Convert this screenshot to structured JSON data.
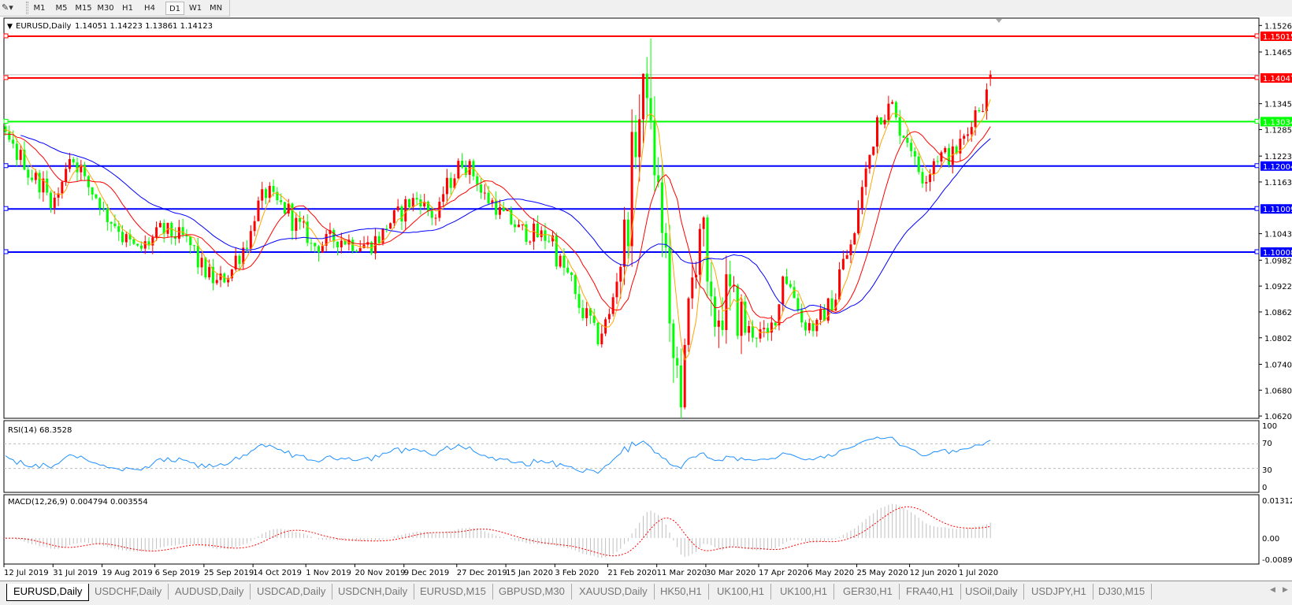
{
  "toolbar": {
    "periods": [
      "M1",
      "M5",
      "M15",
      "M30",
      "H1",
      "H4",
      "D1",
      "W1",
      "MN"
    ],
    "active": "D1"
  },
  "chart": {
    "symbol_header": "EURUSD,Daily",
    "ohlc": "1.14051 1.14223 1.13861 1.14123"
  },
  "tabs": [
    "EURUSD,Daily",
    "USDCHF,Daily",
    "AUDUSD,Daily",
    "USDCAD,Daily",
    "USDCNH,Daily",
    "EURUSD,M15",
    "GBPUSD,M30",
    "XAUUSD,Daily",
    "HK50,H1",
    "UK100,H1",
    "UK100,H1",
    "GER30,H1",
    "FRA40,H1",
    "USOil,Daily",
    "USDJPY,H1",
    "DJ30,M15"
  ],
  "active_tab": "EURUSD,Daily",
  "chart_data": {
    "type": "candlestick",
    "symbol": "EURUSD",
    "timeframe": "Daily",
    "last_bar": {
      "open": 1.14051,
      "high": 1.14223,
      "low": 1.13861,
      "close": 1.14123
    },
    "colors": {
      "bull": "#ff0000",
      "bear": "#00ff00",
      "ma_fast": "#ffa500",
      "ma_mid": "#ff0000",
      "ma_slow": "#0000ff",
      "rsi": "#1e90ff",
      "macd_hist": "#c0c0c0",
      "macd_signal": "#ff0000"
    },
    "close_path": [
      [
        "2019-06-20",
        1.127
      ],
      [
        "2019-07-12",
        1.1273
      ],
      [
        "2019-07-23",
        1.1177
      ],
      [
        "2019-07-31",
        1.112
      ],
      [
        "2019-08-06",
        1.1225
      ],
      [
        "2019-08-18",
        1.11
      ],
      [
        "2019-08-31",
        1.0995
      ],
      [
        "2019-09-08",
        1.1052
      ],
      [
        "2019-09-17",
        1.1033
      ],
      [
        "2019-09-29",
        1.0918
      ],
      [
        "2019-10-08",
        1.0995
      ],
      [
        "2019-10-17",
        1.1139
      ],
      [
        "2019-10-26",
        1.1091
      ],
      [
        "2019-11-04",
        1.1014
      ],
      [
        "2019-11-13",
        1.1033
      ],
      [
        "2019-11-25",
        1.1014
      ],
      [
        "2019-12-07",
        1.11
      ],
      [
        "2019-12-13",
        1.1129
      ],
      [
        "2019-12-19",
        1.1081
      ],
      [
        "2019-12-29",
        1.1225
      ],
      [
        "2020-01-07",
        1.1129
      ],
      [
        "2020-01-19",
        1.1052
      ],
      [
        "2020-01-31",
        1.1033
      ],
      [
        "2020-02-12",
        1.0861
      ],
      [
        "2020-02-18",
        1.0803
      ],
      [
        "2020-02-24",
        1.0899
      ],
      [
        "2020-03-01",
        1.1168
      ],
      [
        "2020-03-06",
        1.1407
      ],
      [
        "2020-03-10",
        1.1206
      ],
      [
        "2020-03-16",
        1.0784
      ],
      [
        "2020-03-19",
        1.0688
      ],
      [
        "2020-03-23",
        1.0861
      ],
      [
        "2020-03-26",
        1.1072
      ],
      [
        "2020-03-31",
        1.0841
      ],
      [
        "2020-04-06",
        1.0899
      ],
      [
        "2020-04-12",
        1.0822
      ],
      [
        "2020-04-21",
        1.0803
      ],
      [
        "2020-04-27",
        1.0957
      ],
      [
        "2020-05-03",
        1.0841
      ],
      [
        "2020-05-09",
        1.0822
      ],
      [
        "2020-05-15",
        1.0899
      ],
      [
        "2020-05-24",
        1.1072
      ],
      [
        "2020-05-30",
        1.1302
      ],
      [
        "2020-06-05",
        1.134
      ],
      [
        "2020-06-11",
        1.1264
      ],
      [
        "2020-06-17",
        1.1177
      ],
      [
        "2020-06-23",
        1.1225
      ],
      [
        "2020-06-29",
        1.1225
      ],
      [
        "2020-07-05",
        1.1302
      ],
      [
        "2020-07-09",
        1.135
      ],
      [
        "2020-07-13",
        1.14123
      ]
    ],
    "extremes": [
      {
        "date": "2020-03-09",
        "high": 1.1496
      },
      {
        "date": "2020-03-20",
        "low": 1.0636
      }
    ],
    "price_axis_ticks": [
      "1.15265",
      "1.14650",
      "1.13450",
      "1.12850",
      "1.12235",
      "1.11635",
      "1.10435",
      "1.09820",
      "1.09220",
      "1.08620",
      "1.08020",
      "1.07405",
      "1.06805",
      "1.06205"
    ],
    "levels": [
      {
        "price": "1.15015",
        "color": "#ff0000"
      },
      {
        "price": "1.14047",
        "color": "#ff0000"
      },
      {
        "price": "1.13034",
        "color": "#00ff00"
      },
      {
        "price": "1.12004",
        "color": "#0000ff"
      },
      {
        "price": "1.11009",
        "color": "#0000ff"
      },
      {
        "price": "1.10008",
        "color": "#0000ff"
      }
    ],
    "date_ticks": [
      {
        "label": "12 Jul 2019",
        "date": "2019-07-12"
      },
      {
        "label": "31 Jul 2019",
        "date": "2019-07-31"
      },
      {
        "label": "19 Aug 2019",
        "date": "2019-08-19"
      },
      {
        "label": "6 Sep 2019",
        "date": "2019-09-06"
      },
      {
        "label": "25 Sep 2019",
        "date": "2019-09-25"
      },
      {
        "label": "14 Oct 2019",
        "date": "2019-10-14"
      },
      {
        "label": "1 Nov 2019",
        "date": "2019-11-01"
      },
      {
        "label": "20 Nov 2019",
        "date": "2019-11-20"
      },
      {
        "label": "9 Dec 2019",
        "date": "2019-12-09"
      },
      {
        "label": "27 Dec 2019",
        "date": "2019-12-27"
      },
      {
        "label": "15 Jan 2020",
        "date": "2020-01-15"
      },
      {
        "label": "3 Feb 2020",
        "date": "2020-02-03"
      },
      {
        "label": "21 Feb 2020",
        "date": "2020-02-21"
      },
      {
        "label": "11 Mar 2020",
        "date": "2020-03-11"
      },
      {
        "label": "30 Mar 2020",
        "date": "2020-03-30"
      },
      {
        "label": "17 Apr 2020",
        "date": "2020-04-17"
      },
      {
        "label": "6 May 2020",
        "date": "2020-05-06"
      },
      {
        "label": "25 May 2020",
        "date": "2020-05-25"
      },
      {
        "label": "12 Jun 2020",
        "date": "2020-06-12"
      },
      {
        "label": "1 Jul 2020",
        "date": "2020-07-01"
      }
    ],
    "rsi": {
      "label": "RSI(14) 68.3528",
      "period": 14,
      "levels": [
        70,
        30
      ],
      "axis": [
        "100",
        "70",
        "30",
        "0"
      ]
    },
    "macd": {
      "label": "MACD(12,26,9) 0.004794 0.003554",
      "axis": [
        "0.013121",
        "0.00",
        "-0.00893"
      ],
      "max": 0.013121,
      "min": -0.00893
    }
  }
}
